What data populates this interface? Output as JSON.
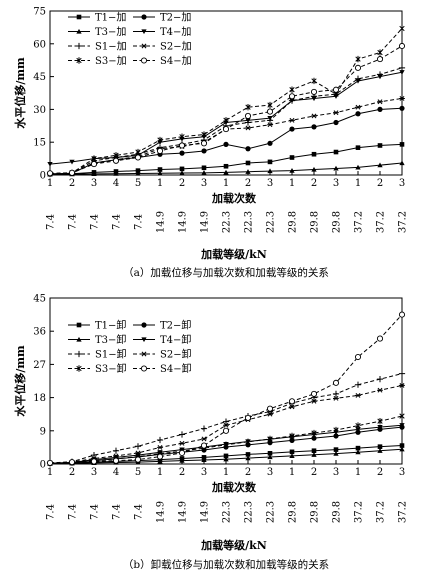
{
  "chart_data": [
    {
      "type": "line",
      "caption": "（a）加载位移与加载次数和加载等级的关系",
      "xlabel": "加载次数",
      "x2label": "加载等级/kN",
      "ylabel": "水平位移/mm",
      "ylim": [
        0,
        75
      ],
      "yticks": [
        0,
        15,
        30,
        45,
        60,
        75
      ],
      "categories": [
        "1",
        "2",
        "3",
        "4",
        "5",
        "1",
        "2",
        "3",
        "1",
        "2",
        "3",
        "1",
        "2",
        "3",
        "1",
        "2",
        "3"
      ],
      "levels": [
        "7.4",
        "7.4",
        "7.4",
        "7.4",
        "7.4",
        "14.9",
        "14.9",
        "14.9",
        "22.3",
        "22.3",
        "22.3",
        "29.8",
        "29.8",
        "29.8",
        "37.2",
        "37.2",
        "37.2"
      ],
      "legend_columns": 2,
      "series": [
        {
          "name": "T1−加",
          "marker": "square-filled",
          "dash": "solid",
          "values": [
            0.5,
            0.6,
            1.2,
            1.6,
            2.0,
            2.5,
            2.8,
            3.3,
            4.0,
            5.5,
            6.0,
            8.0,
            9.5,
            10.5,
            12.5,
            13.5,
            14.0
          ]
        },
        {
          "name": "T2−加",
          "marker": "circle-filled",
          "dash": "solid",
          "values": [
            0.5,
            0.8,
            5.5,
            7.0,
            8.0,
            9.5,
            10.0,
            11.0,
            14.0,
            12.0,
            14.5,
            21.0,
            22.0,
            24.0,
            28.0,
            30.0,
            30.5
          ]
        },
        {
          "name": "T3−加",
          "marker": "triangle-up-filled",
          "dash": "solid",
          "values": [
            0.3,
            0.4,
            0.5,
            0.6,
            0.7,
            0.8,
            0.9,
            1.0,
            1.2,
            1.5,
            1.8,
            2.0,
            2.5,
            3.0,
            3.5,
            4.5,
            5.5
          ]
        },
        {
          "name": "T4−加",
          "marker": "triangle-down-filled",
          "dash": "solid",
          "values": [
            5.0,
            6.0,
            7.5,
            8.0,
            9.0,
            15.0,
            16.5,
            17.5,
            24.0,
            25.0,
            26.0,
            34.0,
            35.0,
            36.0,
            43.0,
            45.0,
            47.0
          ]
        },
        {
          "name": "S1−加",
          "marker": "plus",
          "dash": "dashed",
          "values": [
            0.5,
            1.0,
            6.5,
            8.0,
            9.5,
            12.5,
            14.0,
            16.0,
            22.5,
            24.0,
            25.0,
            34.0,
            36.0,
            37.0,
            44.0,
            46.0,
            49.0
          ]
        },
        {
          "name": "S2−加",
          "marker": "asterisk",
          "dash": "dashed",
          "values": [
            0.5,
            1.0,
            5.5,
            7.0,
            8.5,
            12.0,
            13.0,
            15.0,
            21.0,
            21.5,
            23.0,
            25.0,
            27.0,
            28.5,
            31.0,
            33.5,
            35.0
          ]
        },
        {
          "name": "S3−加",
          "marker": "star",
          "dash": "dashed",
          "values": [
            0.5,
            1.0,
            7.5,
            9.0,
            10.5,
            16.0,
            17.5,
            18.5,
            25.0,
            31.0,
            32.0,
            39.0,
            43.0,
            37.0,
            53.0,
            56.0,
            67.0
          ]
        },
        {
          "name": "S4−加",
          "marker": "circle-open",
          "dash": "dashed",
          "values": [
            0.8,
            1.0,
            5.0,
            6.5,
            8.0,
            11.0,
            13.5,
            14.5,
            21.0,
            27.0,
            29.0,
            36.0,
            38.0,
            39.0,
            49.0,
            53.0,
            59.0
          ]
        }
      ]
    },
    {
      "type": "line",
      "caption": "（b）卸载位移与加载次数和加载等级的关系",
      "xlabel": "加载次数",
      "x2label": "加载等级/kN",
      "ylabel": "水平位移/mm",
      "ylim": [
        0,
        45
      ],
      "yticks": [
        0,
        9,
        18,
        27,
        36,
        45
      ],
      "categories": [
        "1",
        "2",
        "3",
        "4",
        "5",
        "1",
        "2",
        "3",
        "1",
        "2",
        "3",
        "1",
        "2",
        "3",
        "1",
        "2",
        "3"
      ],
      "levels": [
        "7.4",
        "7.4",
        "7.4",
        "7.4",
        "7.4",
        "14.9",
        "14.9",
        "14.9",
        "22.3",
        "22.3",
        "22.3",
        "29.8",
        "29.8",
        "29.8",
        "37.2",
        "37.2",
        "37.2"
      ],
      "legend_columns": 2,
      "series": [
        {
          "name": "T1−卸",
          "marker": "square-filled",
          "dash": "solid",
          "values": [
            0.2,
            0.3,
            0.5,
            0.7,
            0.9,
            1.2,
            1.5,
            1.8,
            2.2,
            2.6,
            2.9,
            3.3,
            3.6,
            3.9,
            4.3,
            4.7,
            5.0
          ]
        },
        {
          "name": "T2−卸",
          "marker": "circle-filled",
          "dash": "solid",
          "values": [
            0.2,
            0.4,
            0.9,
            1.4,
            1.9,
            2.6,
            3.2,
            3.8,
            4.6,
            5.2,
            5.8,
            6.4,
            7.0,
            7.6,
            8.6,
            9.4,
            10.0
          ]
        },
        {
          "name": "T3−卸",
          "marker": "triangle-up-filled",
          "dash": "solid",
          "values": [
            0.1,
            0.2,
            0.3,
            0.4,
            0.5,
            0.7,
            0.9,
            1.1,
            1.3,
            1.6,
            1.9,
            2.2,
            2.5,
            2.8,
            3.2,
            3.6,
            4.0
          ]
        },
        {
          "name": "T4−卸",
          "marker": "triangle-down-filled",
          "dash": "solid",
          "values": [
            0.2,
            0.4,
            1.2,
            1.8,
            2.4,
            3.2,
            3.9,
            4.6,
            5.4,
            6.1,
            6.7,
            7.4,
            8.0,
            8.6,
            9.4,
            10.0,
            10.5
          ]
        },
        {
          "name": "S1−卸",
          "marker": "plus",
          "dash": "dashed",
          "values": [
            0.3,
            0.6,
            2.4,
            3.6,
            4.8,
            6.5,
            8.0,
            9.6,
            11.5,
            13.0,
            14.2,
            16.5,
            18.0,
            19.0,
            21.5,
            23.0,
            24.5
          ]
        },
        {
          "name": "S2−卸",
          "marker": "asterisk",
          "dash": "dashed",
          "values": [
            0.3,
            0.5,
            1.5,
            2.2,
            3.0,
            4.5,
            5.6,
            6.8,
            10.5,
            12.0,
            13.5,
            15.5,
            17.0,
            17.8,
            18.6,
            20.0,
            21.3
          ]
        },
        {
          "name": "S3−卸",
          "marker": "star",
          "dash": "dashed",
          "values": [
            0.2,
            0.4,
            0.9,
            1.4,
            2.0,
            2.8,
            3.5,
            4.3,
            5.2,
            6.0,
            6.8,
            7.6,
            8.4,
            9.2,
            10.4,
            11.6,
            13.0
          ]
        },
        {
          "name": "S4−卸",
          "marker": "circle-open",
          "dash": "dashed",
          "values": [
            0.3,
            0.5,
            0.7,
            0.9,
            1.2,
            2.0,
            3.0,
            5.0,
            9.0,
            12.5,
            15.0,
            17.0,
            19.0,
            22.0,
            29.0,
            34.0,
            40.5
          ]
        }
      ]
    }
  ]
}
